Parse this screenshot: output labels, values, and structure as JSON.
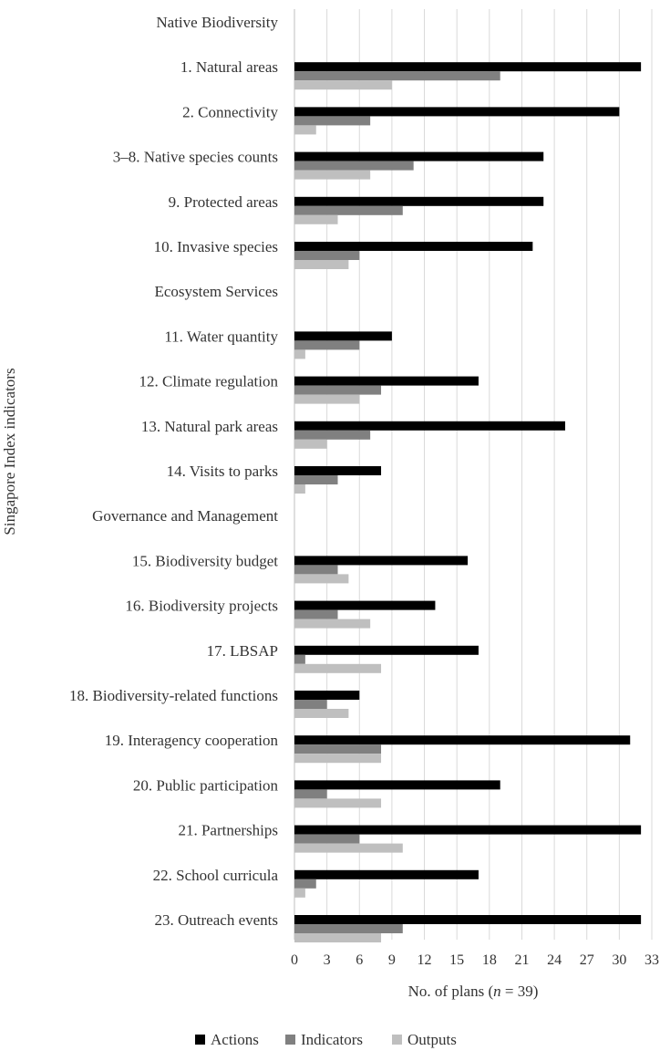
{
  "chart_data": {
    "type": "bar",
    "orientation": "horizontal",
    "ylabel": "Singapore Index indicators",
    "xlabel_prefix": "No. of plans (",
    "xlabel_var": "n",
    "xlabel_suffix": " = 39)",
    "xlim": [
      0,
      33
    ],
    "xticks": [
      0,
      3,
      6,
      9,
      12,
      15,
      18,
      21,
      24,
      27,
      30,
      33
    ],
    "grid": "vertical",
    "legend_position": "bottom",
    "categories": [
      "Native Biodiversity",
      "1. Natural areas",
      "2. Connectivity",
      "3–8. Native species counts",
      "9. Protected areas",
      "10. Invasive species",
      "Ecosystem Services",
      "11. Water quantity",
      "12. Climate regulation",
      "13. Natural park areas",
      "14. Visits to parks",
      "Governance and Management",
      "15. Biodiversity budget",
      "16. Biodiversity projects",
      "17. LBSAP",
      "18. Biodiversity-related functions",
      "19. Interagency cooperation",
      "20. Public participation",
      "21. Partnerships",
      "22. School curricula",
      "23. Outreach events"
    ],
    "series": [
      {
        "name": "Actions",
        "color": "#000000",
        "values": [
          null,
          32,
          30,
          23,
          23,
          22,
          null,
          9,
          17,
          25,
          8,
          null,
          16,
          13,
          17,
          6,
          31,
          19,
          32,
          17,
          32
        ]
      },
      {
        "name": "Indicators",
        "color": "#808080",
        "values": [
          null,
          19,
          7,
          11,
          10,
          6,
          null,
          6,
          8,
          7,
          4,
          null,
          4,
          4,
          1,
          3,
          8,
          3,
          6,
          2,
          10
        ]
      },
      {
        "name": "Outputs",
        "color": "#bfbfbf",
        "values": [
          null,
          9,
          2,
          7,
          4,
          5,
          null,
          1,
          6,
          3,
          1,
          null,
          5,
          7,
          8,
          5,
          8,
          8,
          10,
          1,
          8
        ]
      }
    ]
  }
}
